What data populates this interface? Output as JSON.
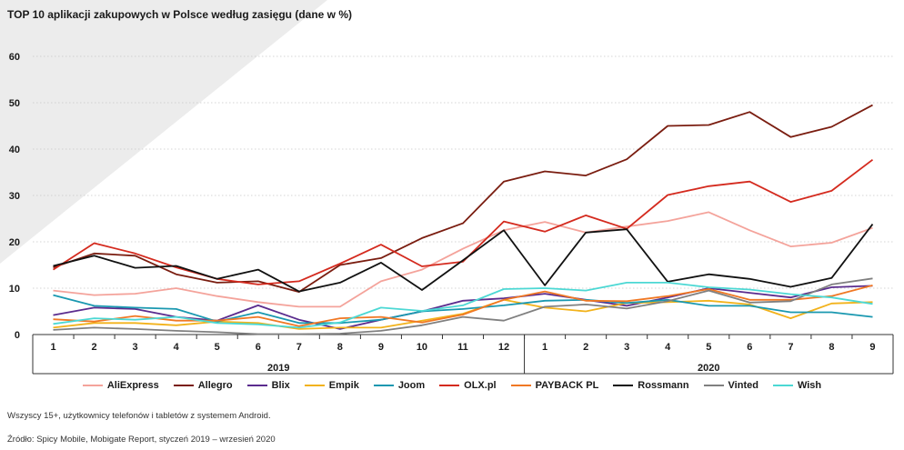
{
  "chart_data": {
    "type": "line",
    "title": "TOP 10 aplikacji zakupowych w Polsce według zasięgu (dane w %)",
    "ylim": [
      0,
      60
    ],
    "yticks": [
      "0",
      "10",
      "20",
      "30",
      "40",
      "50",
      "60"
    ],
    "ytick_values": [
      0,
      10,
      20,
      30,
      40,
      50,
      60
    ],
    "categories": [
      "1",
      "2",
      "3",
      "4",
      "5",
      "6",
      "7",
      "8",
      "9",
      "10",
      "11",
      "12",
      "1",
      "2",
      "3",
      "4",
      "5",
      "6",
      "7",
      "8",
      "9"
    ],
    "year_groups": [
      {
        "label": "2019",
        "start": 0,
        "end": 11
      },
      {
        "label": "2020",
        "start": 12,
        "end": 20
      }
    ],
    "series": [
      {
        "name": "AliExpress",
        "color": "#f4a39b",
        "values": [
          9.5,
          8.5,
          8.8,
          10,
          8.3,
          7,
          6,
          6,
          11.5,
          14,
          18.5,
          22.5,
          24.3,
          22,
          23.3,
          24.5,
          26.4,
          22.5,
          19,
          19.8,
          23
        ]
      },
      {
        "name": "Allegro",
        "color": "#7a1d10",
        "values": [
          14.5,
          17.5,
          17,
          13,
          11.2,
          11.5,
          9.2,
          15,
          16.5,
          20.8,
          24,
          33,
          35.2,
          34.3,
          37.8,
          45,
          45.2,
          48,
          42.6,
          44.8,
          49.5
        ]
      },
      {
        "name": "Blix",
        "color": "#5b2c8e",
        "values": [
          4.2,
          5.8,
          5.5,
          3.8,
          3,
          6.3,
          3.2,
          1.2,
          3.2,
          5,
          7.3,
          7.8,
          8.8,
          7.5,
          6.2,
          8,
          10,
          9,
          8,
          10.2,
          10.5
        ]
      },
      {
        "name": "Empik",
        "color": "#f2b21b",
        "values": [
          1.5,
          2.5,
          2.5,
          2,
          2.8,
          2.5,
          1.2,
          1.5,
          1.5,
          3,
          4.5,
          7.5,
          5.8,
          5,
          6.8,
          7,
          7.3,
          6.5,
          3.5,
          6.7,
          7
        ]
      },
      {
        "name": "Joom",
        "color": "#1a98b0",
        "values": [
          8.5,
          6.2,
          5.8,
          5.5,
          2.8,
          4.8,
          2.5,
          2.5,
          3.2,
          5,
          5.5,
          6.3,
          7.3,
          7.5,
          6.8,
          7.5,
          6.2,
          6.2,
          4.8,
          4.8,
          3.8
        ]
      },
      {
        "name": "OLX.pl",
        "color": "#d42a1e",
        "values": [
          14,
          19.7,
          17.5,
          14.5,
          12,
          10.8,
          11.5,
          15.3,
          19.4,
          14.7,
          15.7,
          24.4,
          22.2,
          25.7,
          22.8,
          30.1,
          32,
          33,
          28.6,
          31,
          37.7
        ]
      },
      {
        "name": "PAYBACK PL",
        "color": "#f07824",
        "values": [
          3.3,
          2.8,
          4,
          3,
          3,
          3.8,
          1.8,
          3.5,
          3.8,
          2.6,
          4.3,
          7.5,
          9.3,
          7.3,
          7.2,
          8.3,
          9.8,
          7.5,
          7.5,
          8.3,
          10.6
        ]
      },
      {
        "name": "Rossmann",
        "color": "#111111",
        "values": [
          14.8,
          17,
          14.4,
          14.8,
          12,
          14,
          9.3,
          11.2,
          15.5,
          9.6,
          16,
          22.5,
          10.6,
          22,
          22.7,
          11.4,
          13,
          12,
          10.3,
          12.2,
          23.8
        ]
      },
      {
        "name": "Vinted",
        "color": "#808080",
        "values": [
          1,
          1.5,
          1.2,
          0.8,
          0.5,
          0.1,
          0.1,
          0.2,
          0.8,
          2,
          3.8,
          3,
          6,
          6.5,
          5.6,
          7.2,
          9.5,
          6.9,
          7.2,
          10.8,
          12.1
        ]
      },
      {
        "name": "Wish",
        "color": "#4cd8d4",
        "values": [
          2.3,
          3.5,
          3.2,
          3.8,
          2.5,
          2.2,
          1.5,
          2.6,
          5.8,
          5.1,
          6.3,
          9.8,
          10,
          9.5,
          11.2,
          11.2,
          10.2,
          9.7,
          8.7,
          8,
          6.6
        ]
      }
    ]
  },
  "notes": {
    "line1": "Wszyscy 15+, użytkownicy telefonów i tabletów z systemem Android.",
    "line2": "Źródło: Spicy Mobile, Mobigate Report, styczeń 2019 – wrzesień 2020"
  }
}
